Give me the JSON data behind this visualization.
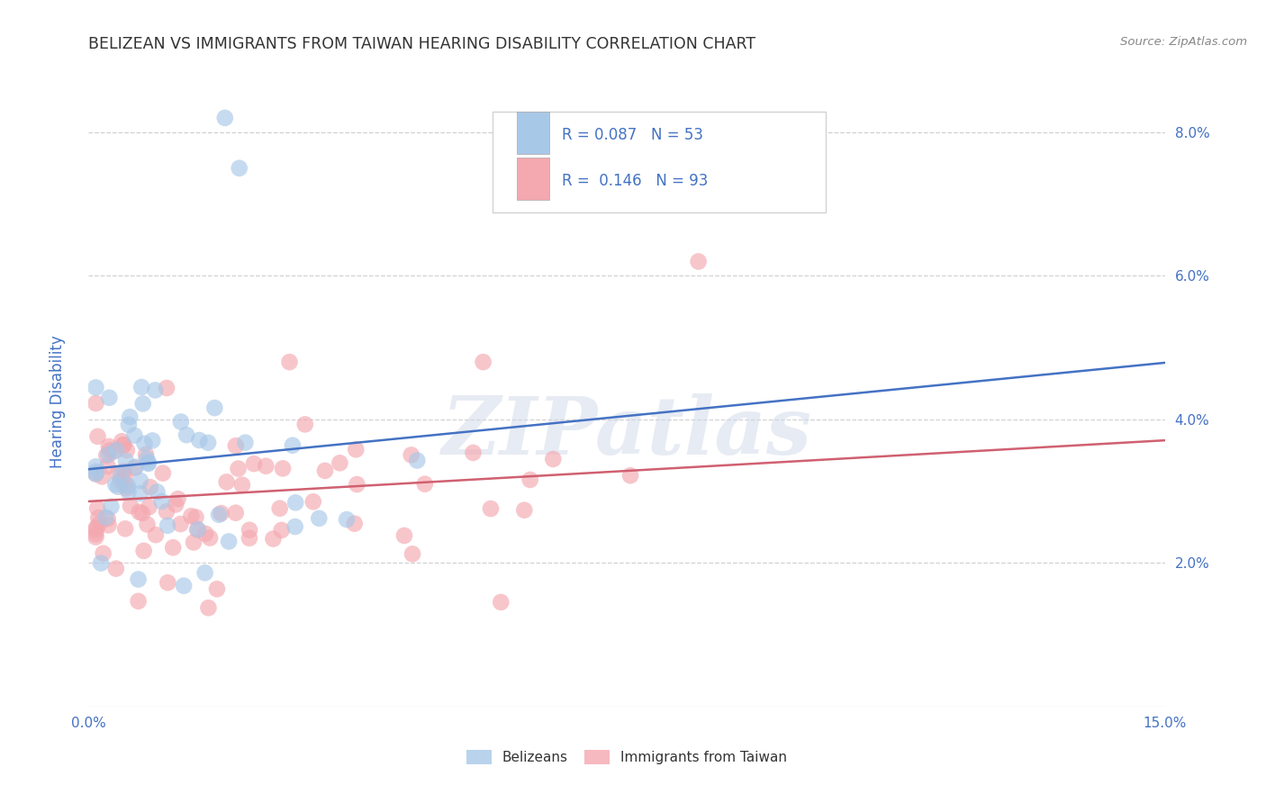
{
  "title": "BELIZEAN VS IMMIGRANTS FROM TAIWAN HEARING DISABILITY CORRELATION CHART",
  "source": "Source: ZipAtlas.com",
  "ylabel": "Hearing Disability",
  "x_min": 0.0,
  "x_max": 0.15,
  "y_min": 0.0,
  "y_max": 0.085,
  "x_ticks": [
    0.0,
    0.05,
    0.1,
    0.15
  ],
  "x_tick_labels": [
    "0.0%",
    "",
    "",
    "15.0%"
  ],
  "y_ticks": [
    0.02,
    0.04,
    0.06,
    0.08
  ],
  "y_tick_labels": [
    "2.0%",
    "4.0%",
    "6.0%",
    "8.0%"
  ],
  "blue_R": 0.087,
  "blue_N": 53,
  "pink_R": 0.146,
  "pink_N": 93,
  "blue_color": "#a8c8e8",
  "pink_color": "#f4a8b0",
  "blue_line_color": "#4472c4",
  "pink_line_color": "#d06070",
  "legend_label_blue": "Belizeans",
  "legend_label_pink": "Immigrants from Taiwan",
  "legend_text_color": "#4472c4",
  "legend_box_color": "#333333",
  "watermark_text": "ZIPatlas",
  "background_color": "#ffffff",
  "grid_color": "#cccccc",
  "title_color": "#333333",
  "axis_label_color": "#4472c4",
  "tick_color": "#4472c4"
}
